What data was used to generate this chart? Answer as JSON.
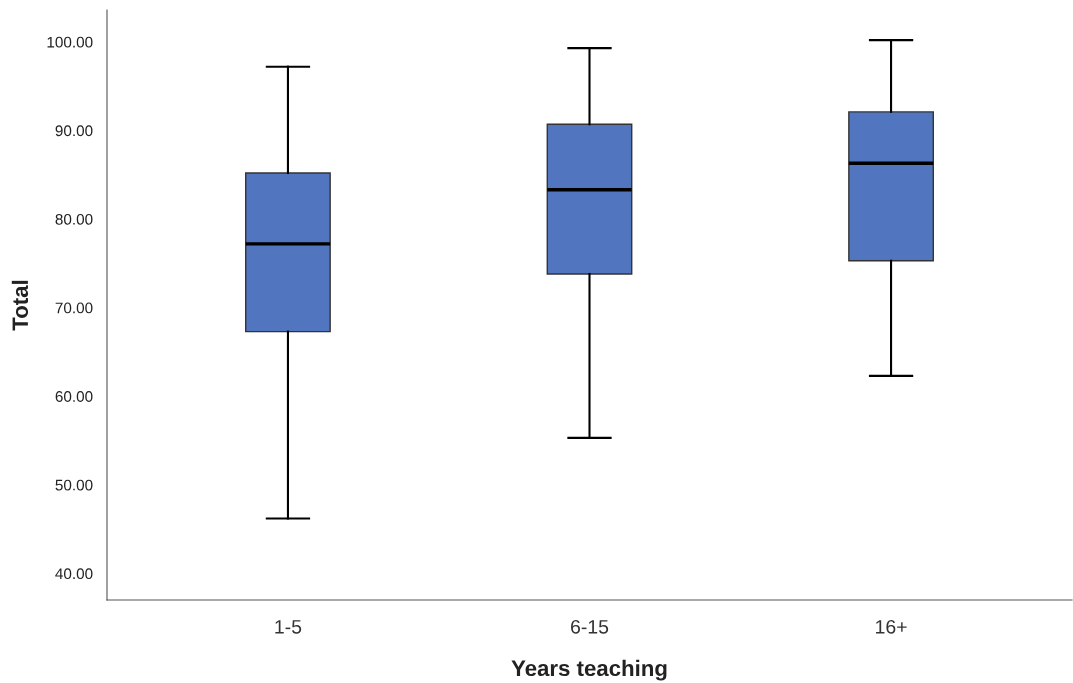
{
  "chart_data": {
    "type": "box",
    "xlabel": "Years teaching",
    "ylabel": "Total",
    "categories": [
      "1-5",
      "6-15",
      "16+"
    ],
    "color": "#5275c0",
    "boxes": [
      {
        "low": 46.2,
        "q1": 67.3,
        "median": 77.2,
        "q3": 85.2,
        "high": 97.2
      },
      {
        "low": 55.3,
        "q1": 73.8,
        "median": 83.3,
        "q3": 90.7,
        "high": 99.3
      },
      {
        "low": 62.3,
        "q1": 75.3,
        "median": 86.3,
        "q3": 92.1,
        "high": 100.2
      }
    ],
    "ylim": [
      37,
      103.6
    ],
    "yticks": [
      {
        "value": 40,
        "label": "40.00"
      },
      {
        "value": 50,
        "label": "50.00"
      },
      {
        "value": 60,
        "label": "60.00"
      },
      {
        "value": 70,
        "label": "70.00"
      },
      {
        "value": 80,
        "label": "80.00"
      },
      {
        "value": 90,
        "label": "90.00"
      },
      {
        "value": 100,
        "label": "100.00"
      }
    ],
    "grid": false
  }
}
